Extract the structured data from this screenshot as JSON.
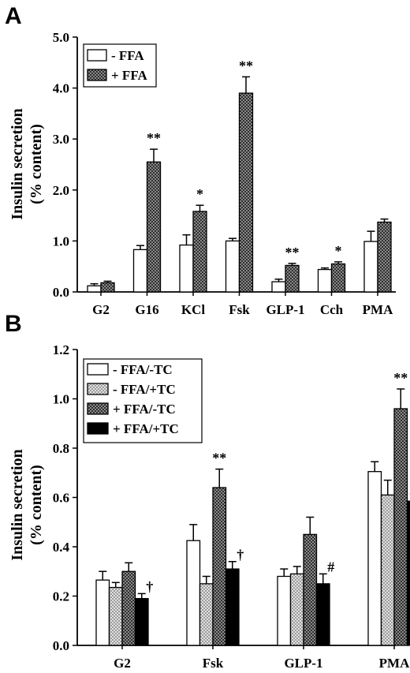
{
  "chart_data": [
    {
      "panel": "A",
      "type": "bar",
      "ylabel_line1": "Insulin secretion",
      "ylabel_line2": "(% content)",
      "ylim": [
        0,
        5
      ],
      "yticks": [
        "0.0",
        "1.0",
        "2.0",
        "3.0",
        "4.0",
        "5.0"
      ],
      "categories": [
        "G2",
        "G16",
        "KCl",
        "Fsk",
        "GLP-1",
        "Cch",
        "PMA"
      ],
      "legend_position": "top-left",
      "series": [
        {
          "name": "- FFA",
          "fill": "white",
          "values": [
            0.12,
            0.83,
            0.92,
            1.0,
            0.2,
            0.44,
            0.99
          ],
          "errors": [
            0.04,
            0.08,
            0.2,
            0.05,
            0.05,
            0.03,
            0.2
          ]
        },
        {
          "name": "+ FFA",
          "fill": "darkgrid",
          "values": [
            0.18,
            2.55,
            1.58,
            3.9,
            0.52,
            0.55,
            1.37
          ],
          "errors": [
            0.03,
            0.25,
            0.12,
            0.32,
            0.04,
            0.04,
            0.06
          ]
        }
      ],
      "annotations": [
        {
          "category": "G16",
          "series": 1,
          "text": "**"
        },
        {
          "category": "KCl",
          "series": 1,
          "text": "*"
        },
        {
          "category": "Fsk",
          "series": 1,
          "text": "**"
        },
        {
          "category": "GLP-1",
          "series": 1,
          "text": "**"
        },
        {
          "category": "Cch",
          "series": 1,
          "text": "*"
        }
      ]
    },
    {
      "panel": "B",
      "type": "bar",
      "ylabel_line1": "Insulin secretion",
      "ylabel_line2": "(% content)",
      "ylim": [
        0,
        1.2
      ],
      "yticks": [
        "0.0",
        "0.2",
        "0.4",
        "0.6",
        "0.8",
        "1.0",
        "1.2"
      ],
      "categories": [
        "G2",
        "Fsk",
        "GLP-1",
        "PMA"
      ],
      "legend_position": "top-left",
      "series": [
        {
          "name": "- FFA/-TC",
          "fill": "white",
          "values": [
            0.265,
            0.425,
            0.28,
            0.705
          ],
          "errors": [
            0.035,
            0.065,
            0.03,
            0.04
          ]
        },
        {
          "name": "- FFA/+TC",
          "fill": "lightgrid",
          "values": [
            0.235,
            0.25,
            0.29,
            0.61
          ],
          "errors": [
            0.02,
            0.03,
            0.03,
            0.06
          ]
        },
        {
          "name": "+ FFA/-TC",
          "fill": "darkgrid",
          "values": [
            0.3,
            0.64,
            0.45,
            0.96
          ],
          "errors": [
            0.035,
            0.075,
            0.07,
            0.08
          ]
        },
        {
          "name": "+ FFA/+TC",
          "fill": "black",
          "values": [
            0.19,
            0.31,
            0.25,
            0.585
          ],
          "errors": [
            0.02,
            0.03,
            0.04,
            0.03
          ]
        }
      ],
      "annotations": [
        {
          "category": "G2",
          "series": 3,
          "text": "†"
        },
        {
          "category": "Fsk",
          "series": 2,
          "text": "**"
        },
        {
          "category": "Fsk",
          "series": 3,
          "text": "†"
        },
        {
          "category": "GLP-1",
          "series": 3,
          "text": "#"
        },
        {
          "category": "PMA",
          "series": 2,
          "text": "**"
        },
        {
          "category": "PMA",
          "series": 3,
          "text": "†"
        }
      ]
    }
  ]
}
